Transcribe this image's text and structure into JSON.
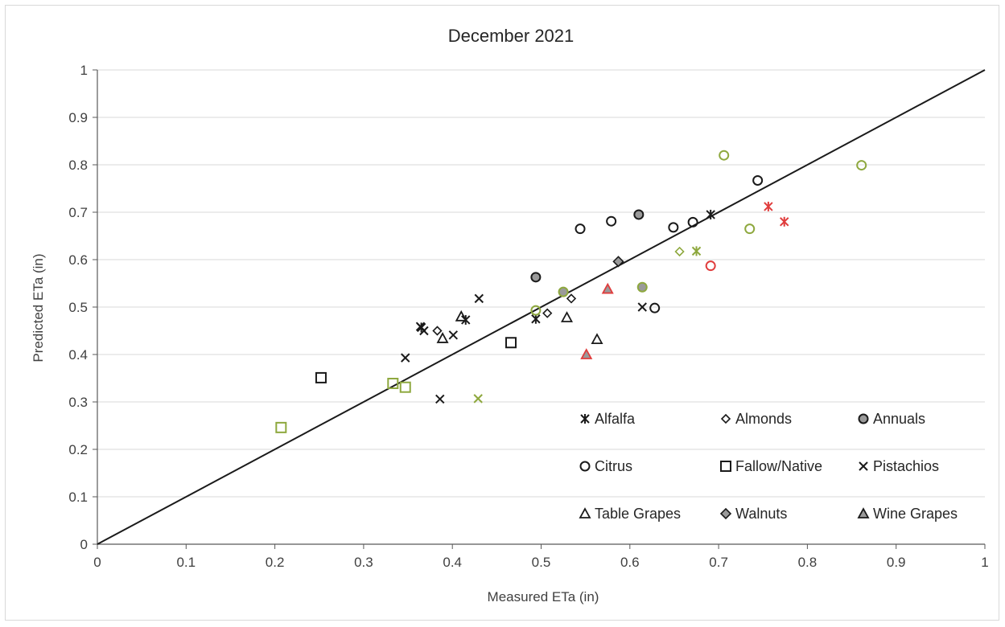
{
  "chart_data": {
    "type": "scatter",
    "title": "December 2021",
    "xlabel": "Measured ETa (in)",
    "ylabel": "Predicted ETa (in)",
    "xlim": [
      0,
      1
    ],
    "ylim": [
      0,
      1
    ],
    "x_ticks": [
      "0",
      "0.1",
      "0.2",
      "0.3",
      "0.4",
      "0.5",
      "0.6",
      "0.7",
      "0.8",
      "0.9",
      "1"
    ],
    "y_ticks": [
      "0",
      "0.1",
      "0.2",
      "0.3",
      "0.4",
      "0.5",
      "0.6",
      "0.7",
      "0.8",
      "0.9",
      "1"
    ],
    "grid": "horizontal",
    "one_to_one_line": true,
    "legend_position": "bottom-right",
    "colors": {
      "black": "#1a1a1a",
      "green": "#8ea83e",
      "red": "#e03c3c",
      "grid": "#d9d9d9"
    },
    "series": [
      {
        "name": "Alfalfa",
        "marker": "asterisk",
        "points": [
          {
            "x": 0.365,
            "y": 0.457,
            "color": "black"
          },
          {
            "x": 0.415,
            "y": 0.473,
            "color": "black"
          },
          {
            "x": 0.494,
            "y": 0.475,
            "color": "black"
          },
          {
            "x": 0.691,
            "y": 0.695,
            "color": "black"
          },
          {
            "x": 0.675,
            "y": 0.618,
            "color": "green"
          },
          {
            "x": 0.756,
            "y": 0.712,
            "color": "red"
          },
          {
            "x": 0.774,
            "y": 0.68,
            "color": "red"
          }
        ]
      },
      {
        "name": "Almonds",
        "marker": "diamond",
        "points": [
          {
            "x": 0.383,
            "y": 0.45,
            "color": "black"
          },
          {
            "x": 0.507,
            "y": 0.487,
            "color": "black"
          },
          {
            "x": 0.534,
            "y": 0.518,
            "color": "black"
          },
          {
            "x": 0.656,
            "y": 0.617,
            "color": "green"
          }
        ]
      },
      {
        "name": "Annuals",
        "marker": "circle-filled",
        "points": [
          {
            "x": 0.494,
            "y": 0.563,
            "color": "black"
          },
          {
            "x": 0.61,
            "y": 0.695,
            "color": "black"
          },
          {
            "x": 0.525,
            "y": 0.532,
            "color": "green"
          },
          {
            "x": 0.614,
            "y": 0.542,
            "color": "green"
          }
        ]
      },
      {
        "name": "Citrus",
        "marker": "circle",
        "points": [
          {
            "x": 0.544,
            "y": 0.665,
            "color": "black"
          },
          {
            "x": 0.579,
            "y": 0.681,
            "color": "black"
          },
          {
            "x": 0.649,
            "y": 0.668,
            "color": "black"
          },
          {
            "x": 0.671,
            "y": 0.679,
            "color": "black"
          },
          {
            "x": 0.744,
            "y": 0.767,
            "color": "black"
          },
          {
            "x": 0.628,
            "y": 0.498,
            "color": "black"
          },
          {
            "x": 0.706,
            "y": 0.82,
            "color": "green"
          },
          {
            "x": 0.735,
            "y": 0.665,
            "color": "green"
          },
          {
            "x": 0.861,
            "y": 0.799,
            "color": "green"
          },
          {
            "x": 0.494,
            "y": 0.493,
            "color": "green"
          },
          {
            "x": 0.691,
            "y": 0.587,
            "color": "red"
          }
        ]
      },
      {
        "name": "Fallow/Native",
        "marker": "square",
        "points": [
          {
            "x": 0.252,
            "y": 0.351,
            "color": "black"
          },
          {
            "x": 0.466,
            "y": 0.425,
            "color": "black"
          },
          {
            "x": 0.207,
            "y": 0.246,
            "color": "green"
          },
          {
            "x": 0.333,
            "y": 0.339,
            "color": "green"
          },
          {
            "x": 0.347,
            "y": 0.331,
            "color": "green"
          }
        ]
      },
      {
        "name": "Pistachios",
        "marker": "x",
        "points": [
          {
            "x": 0.347,
            "y": 0.393,
            "color": "black"
          },
          {
            "x": 0.364,
            "y": 0.459,
            "color": "black"
          },
          {
            "x": 0.368,
            "y": 0.45,
            "color": "black"
          },
          {
            "x": 0.401,
            "y": 0.441,
            "color": "black"
          },
          {
            "x": 0.43,
            "y": 0.518,
            "color": "black"
          },
          {
            "x": 0.386,
            "y": 0.306,
            "color": "black"
          },
          {
            "x": 0.614,
            "y": 0.5,
            "color": "black"
          },
          {
            "x": 0.429,
            "y": 0.307,
            "color": "green"
          }
        ]
      },
      {
        "name": "Table Grapes",
        "marker": "triangle",
        "points": [
          {
            "x": 0.389,
            "y": 0.434,
            "color": "black"
          },
          {
            "x": 0.41,
            "y": 0.48,
            "color": "black"
          },
          {
            "x": 0.529,
            "y": 0.478,
            "color": "black"
          },
          {
            "x": 0.563,
            "y": 0.432,
            "color": "black"
          }
        ]
      },
      {
        "name": "Walnuts",
        "marker": "diamond-filled",
        "points": [
          {
            "x": 0.587,
            "y": 0.596,
            "color": "black"
          }
        ]
      },
      {
        "name": "Wine Grapes",
        "marker": "triangle-filled",
        "points": [
          {
            "x": 0.575,
            "y": 0.538,
            "color": "red"
          },
          {
            "x": 0.551,
            "y": 0.4,
            "color": "red"
          }
        ]
      }
    ]
  }
}
